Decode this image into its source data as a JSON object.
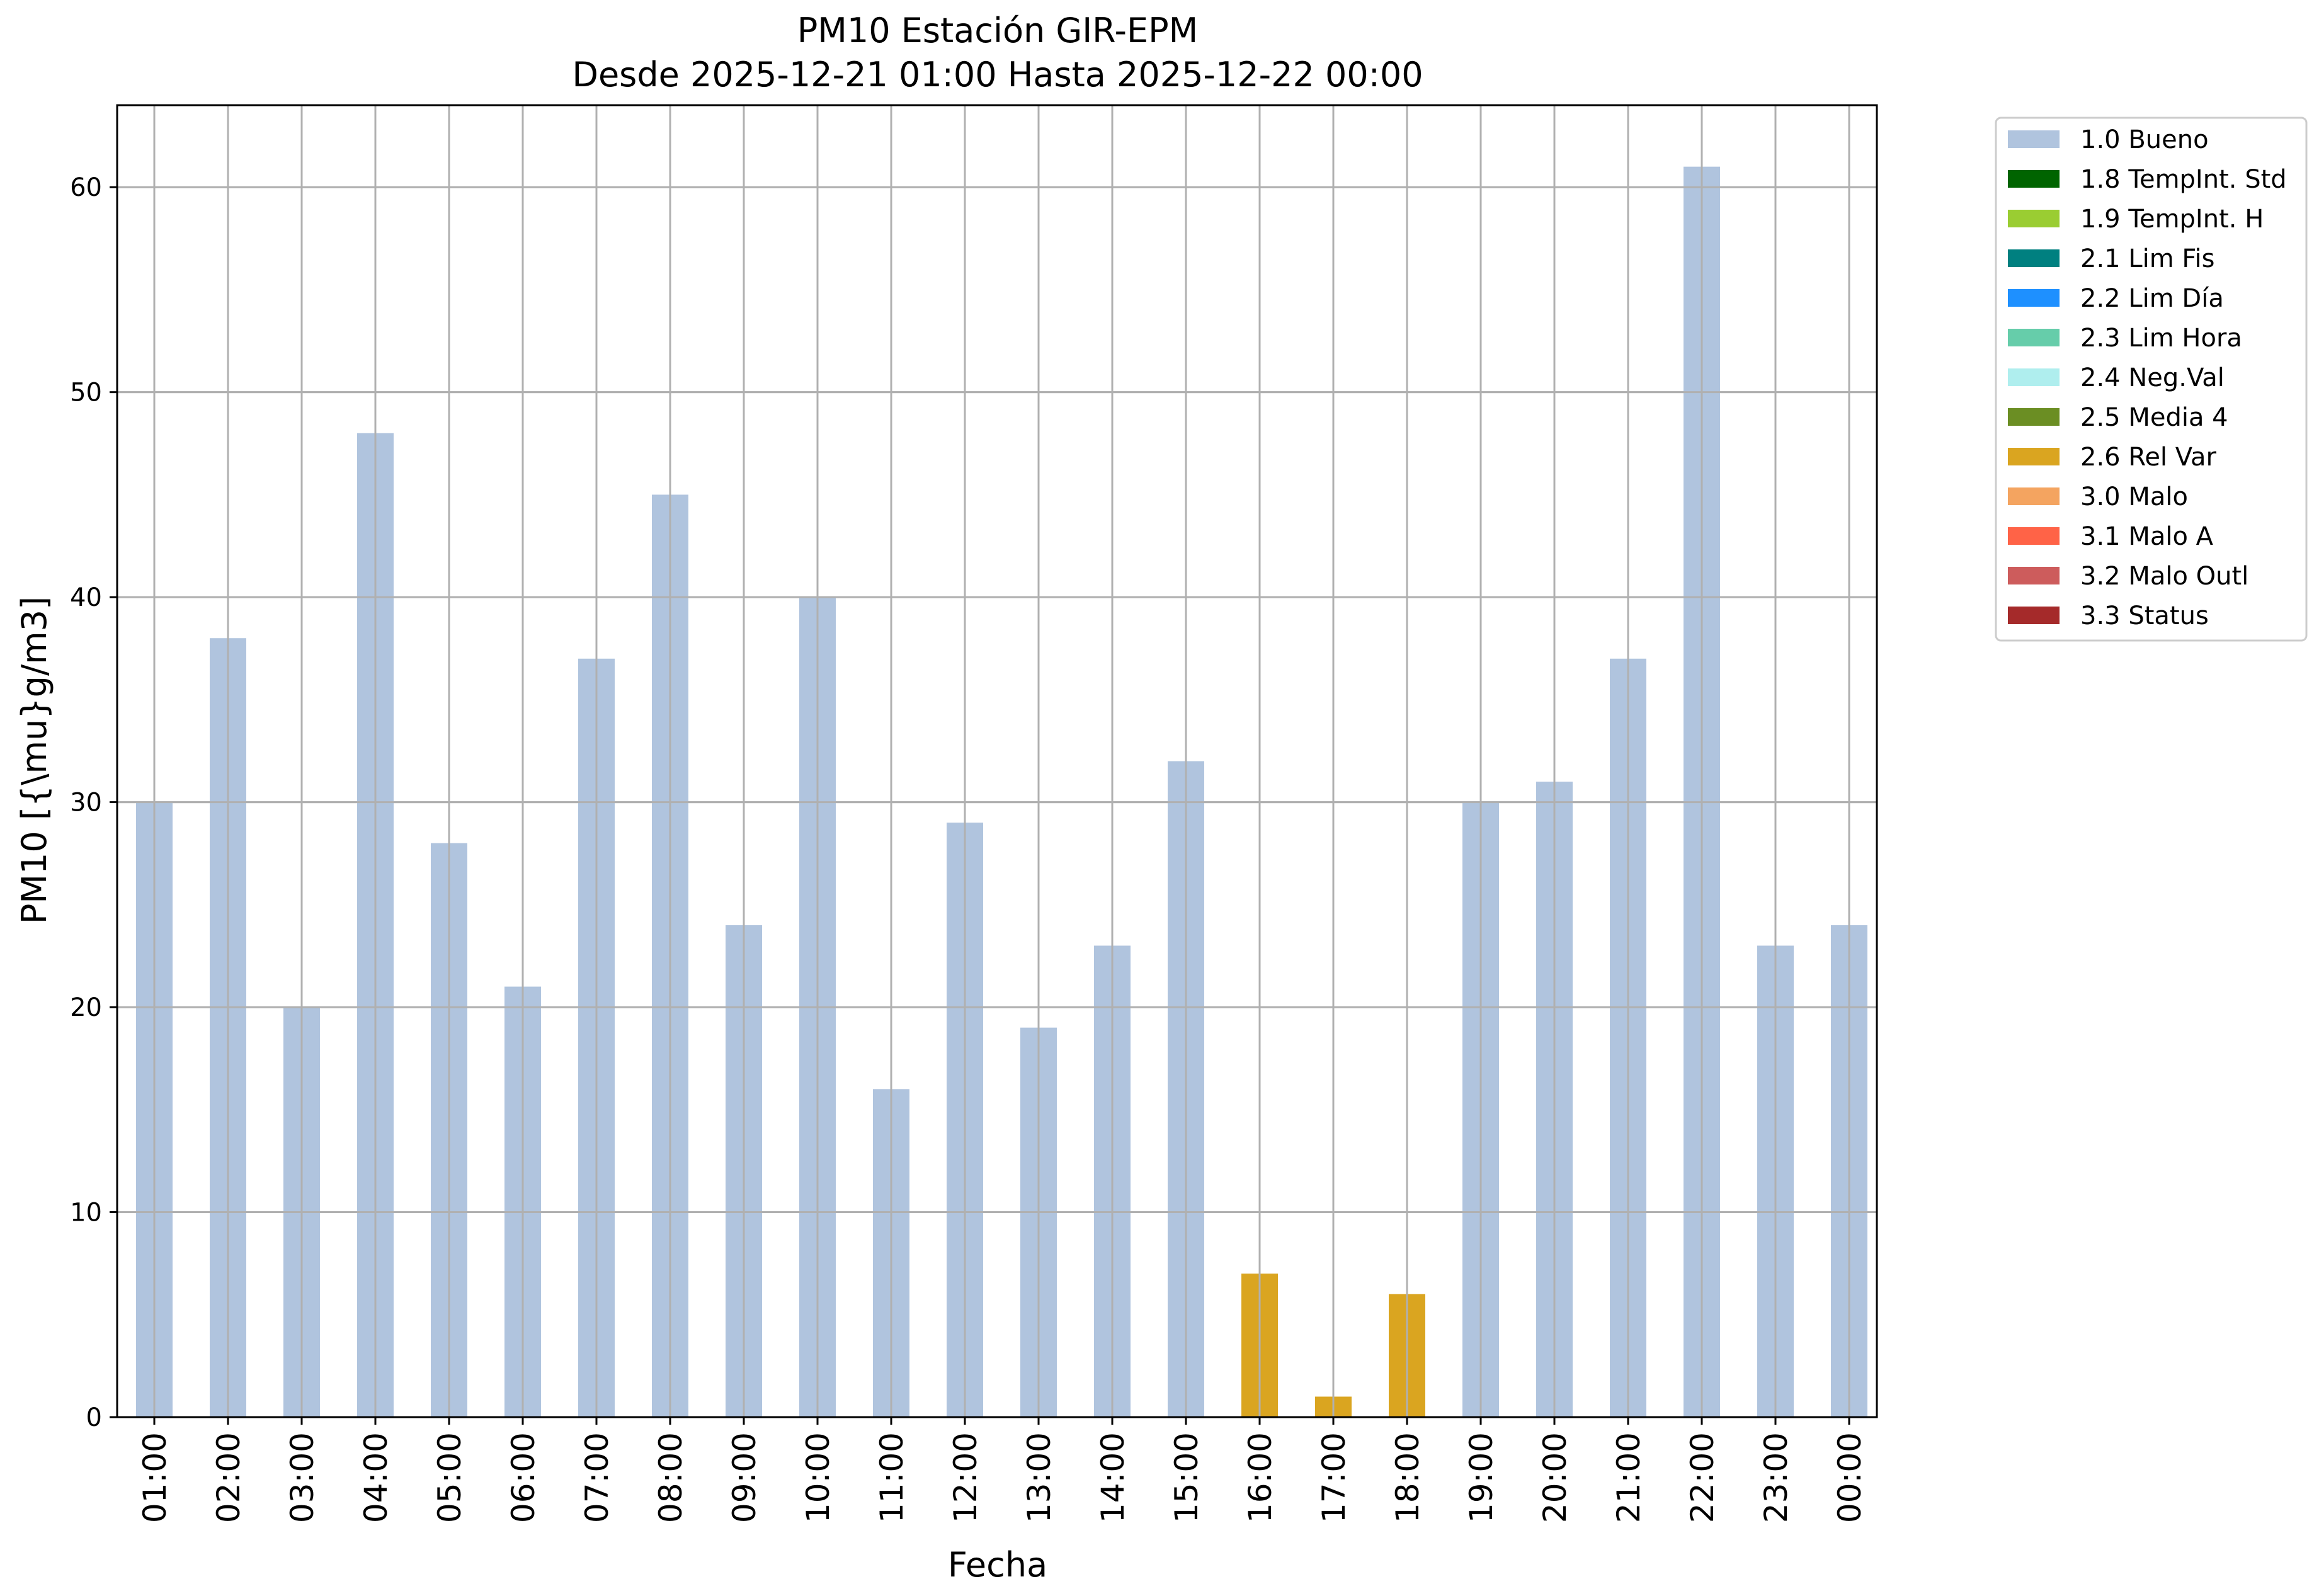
{
  "chart_data": {
    "type": "bar",
    "title": "PM10 Estación GIR-EPM",
    "subtitle": "Desde 2025-12-21 01:00 Hasta 2025-12-22 00:00",
    "xlabel": "Fecha",
    "ylabel": "PM10 [{\\mu}g/m3]",
    "ylim": [
      0,
      64
    ],
    "yticks": [
      0,
      10,
      20,
      30,
      40,
      50,
      60
    ],
    "grid": true,
    "legend_position": "outside-top-right",
    "categories": [
      "01:00",
      "02:00",
      "03:00",
      "04:00",
      "05:00",
      "06:00",
      "07:00",
      "08:00",
      "09:00",
      "10:00",
      "11:00",
      "12:00",
      "13:00",
      "14:00",
      "15:00",
      "16:00",
      "17:00",
      "18:00",
      "19:00",
      "20:00",
      "21:00",
      "22:00",
      "23:00",
      "00:00"
    ],
    "values": [
      30,
      38,
      20,
      48,
      28,
      21,
      37,
      45,
      24,
      40,
      16,
      29,
      19,
      23,
      32,
      7,
      1,
      6,
      30,
      31,
      37,
      61,
      23,
      24
    ],
    "flags": [
      "1.0 Bueno",
      "1.0 Bueno",
      "1.0 Bueno",
      "1.0 Bueno",
      "1.0 Bueno",
      "1.0 Bueno",
      "1.0 Bueno",
      "1.0 Bueno",
      "1.0 Bueno",
      "1.0 Bueno",
      "1.0 Bueno",
      "1.0 Bueno",
      "1.0 Bueno",
      "1.0 Bueno",
      "1.0 Bueno",
      "2.6 Rel Var",
      "2.6 Rel Var",
      "2.6 Rel Var",
      "1.0 Bueno",
      "1.0 Bueno",
      "1.0 Bueno",
      "1.0 Bueno",
      "1.0 Bueno",
      "1.0 Bueno"
    ],
    "legend": [
      {
        "label": "1.0 Bueno",
        "color": "#b0c4de"
      },
      {
        "label": "1.8 TempInt. Std",
        "color": "#006400"
      },
      {
        "label": "1.9 TempInt. H",
        "color": "#9acd32"
      },
      {
        "label": "2.1 Lim Fis",
        "color": "#008080"
      },
      {
        "label": "2.2 Lim Día",
        "color": "#1e90ff"
      },
      {
        "label": "2.3 Lim Hora",
        "color": "#66cdaa"
      },
      {
        "label": "2.4 Neg.Val",
        "color": "#afeeee"
      },
      {
        "label": "2.5 Media 4",
        "color": "#6b8e23"
      },
      {
        "label": "2.6 Rel Var",
        "color": "#daa520"
      },
      {
        "label": "3.0 Malo",
        "color": "#f4a460"
      },
      {
        "label": "3.1 Malo A",
        "color": "#ff6347"
      },
      {
        "label": "3.2 Malo Outl",
        "color": "#cd5c5c"
      },
      {
        "label": "3.3 Status",
        "color": "#a52a2a"
      }
    ]
  }
}
